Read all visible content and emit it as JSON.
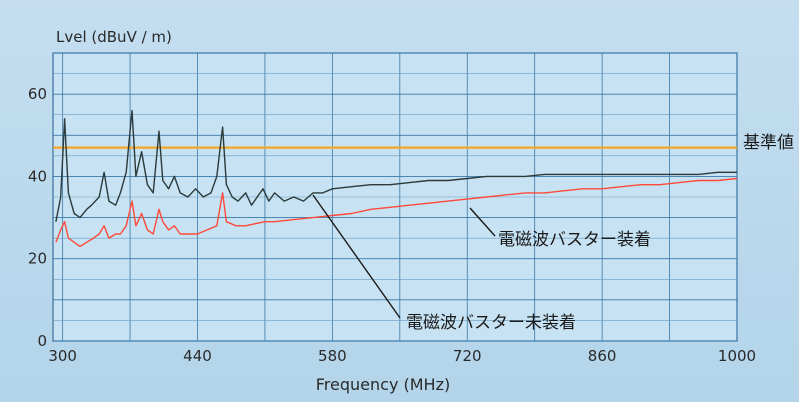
{
  "chart_data": {
    "type": "line",
    "title": "",
    "xlabel": "Frequency (MHz)",
    "ylabel": "Lvel (dBuV / m)",
    "xlim": [
      290,
      1000
    ],
    "ylim": [
      0,
      70
    ],
    "x_ticks": [
      300,
      440,
      580,
      720,
      860,
      1000
    ],
    "y_ticks": [
      0,
      20,
      40,
      60
    ],
    "grid": true,
    "reference_line": {
      "label": "基準値",
      "value": 47,
      "color": "#f5a623"
    },
    "series": [
      {
        "name": "電磁波バスター未装着",
        "color": "#2b3a3a",
        "points": [
          [
            293,
            29
          ],
          [
            298,
            35
          ],
          [
            302,
            54
          ],
          [
            306,
            36
          ],
          [
            312,
            31
          ],
          [
            318,
            30
          ],
          [
            325,
            32
          ],
          [
            330,
            33
          ],
          [
            338,
            35
          ],
          [
            343,
            41
          ],
          [
            348,
            34
          ],
          [
            355,
            33
          ],
          [
            360,
            36
          ],
          [
            366,
            41
          ],
          [
            372,
            56
          ],
          [
            376,
            40
          ],
          [
            382,
            46
          ],
          [
            388,
            38
          ],
          [
            394,
            36
          ],
          [
            400,
            51
          ],
          [
            404,
            39
          ],
          [
            410,
            37
          ],
          [
            416,
            40
          ],
          [
            422,
            36
          ],
          [
            430,
            35
          ],
          [
            438,
            37
          ],
          [
            446,
            35
          ],
          [
            454,
            36
          ],
          [
            460,
            40
          ],
          [
            466,
            52
          ],
          [
            470,
            38
          ],
          [
            476,
            35
          ],
          [
            482,
            34
          ],
          [
            490,
            36
          ],
          [
            496,
            33
          ],
          [
            502,
            35
          ],
          [
            508,
            37
          ],
          [
            514,
            34
          ],
          [
            520,
            36
          ],
          [
            530,
            34
          ],
          [
            540,
            35
          ],
          [
            550,
            34
          ],
          [
            560,
            36
          ],
          [
            570,
            36
          ],
          [
            580,
            37
          ],
          [
            600,
            37.5
          ],
          [
            620,
            38
          ],
          [
            640,
            38
          ],
          [
            660,
            38.5
          ],
          [
            680,
            39
          ],
          [
            700,
            39
          ],
          [
            720,
            39.5
          ],
          [
            740,
            40
          ],
          [
            760,
            40
          ],
          [
            780,
            40
          ],
          [
            800,
            40.5
          ],
          [
            820,
            40.5
          ],
          [
            840,
            40.5
          ],
          [
            860,
            40.5
          ],
          [
            880,
            40.5
          ],
          [
            900,
            40.5
          ],
          [
            920,
            40.5
          ],
          [
            940,
            40.5
          ],
          [
            960,
            40.5
          ],
          [
            980,
            41
          ],
          [
            1000,
            41
          ]
        ]
      },
      {
        "name": "電磁波バスター装着",
        "color": "#ff4a3a",
        "points": [
          [
            293,
            24
          ],
          [
            298,
            27
          ],
          [
            302,
            29
          ],
          [
            306,
            25
          ],
          [
            312,
            24
          ],
          [
            318,
            23
          ],
          [
            325,
            24
          ],
          [
            332,
            25
          ],
          [
            338,
            26
          ],
          [
            343,
            28
          ],
          [
            348,
            25
          ],
          [
            355,
            26
          ],
          [
            360,
            26
          ],
          [
            366,
            28
          ],
          [
            372,
            34
          ],
          [
            376,
            28
          ],
          [
            382,
            31
          ],
          [
            388,
            27
          ],
          [
            394,
            26
          ],
          [
            400,
            32
          ],
          [
            404,
            29
          ],
          [
            410,
            27
          ],
          [
            416,
            28
          ],
          [
            422,
            26
          ],
          [
            430,
            26
          ],
          [
            440,
            26
          ],
          [
            450,
            27
          ],
          [
            460,
            28
          ],
          [
            466,
            36
          ],
          [
            470,
            29
          ],
          [
            480,
            28
          ],
          [
            490,
            28
          ],
          [
            500,
            28.5
          ],
          [
            510,
            29
          ],
          [
            520,
            29
          ],
          [
            540,
            29.5
          ],
          [
            560,
            30
          ],
          [
            580,
            30.5
          ],
          [
            600,
            31
          ],
          [
            620,
            32
          ],
          [
            640,
            32.5
          ],
          [
            660,
            33
          ],
          [
            680,
            33.5
          ],
          [
            700,
            34
          ],
          [
            720,
            34.5
          ],
          [
            740,
            35
          ],
          [
            760,
            35.5
          ],
          [
            780,
            36
          ],
          [
            800,
            36
          ],
          [
            820,
            36.5
          ],
          [
            840,
            37
          ],
          [
            860,
            37
          ],
          [
            880,
            37.5
          ],
          [
            900,
            38
          ],
          [
            920,
            38
          ],
          [
            940,
            38.5
          ],
          [
            960,
            39
          ],
          [
            980,
            39
          ],
          [
            1000,
            39.5
          ]
        ]
      }
    ]
  }
}
